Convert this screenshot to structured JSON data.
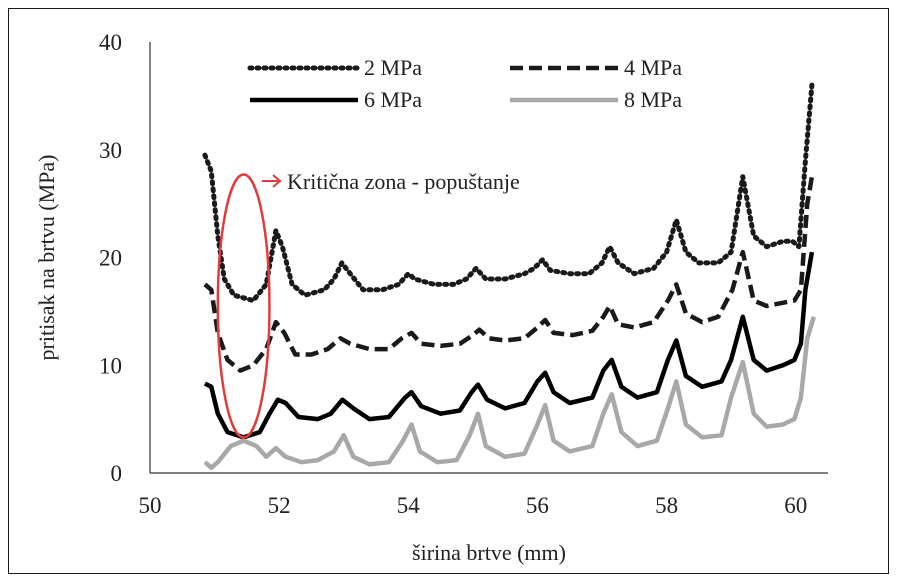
{
  "chart_data": {
    "type": "line",
    "xlabel": "širina brtve (mm)",
    "ylabel": "pritisak na brtvu (MPa)",
    "xlim": [
      50,
      60.5
    ],
    "ylim": [
      0,
      40
    ],
    "xticks": [
      50,
      52,
      54,
      56,
      58,
      60
    ],
    "yticks": [
      0,
      10,
      20,
      30,
      40
    ],
    "grid": false,
    "legend_position": "top",
    "series": [
      {
        "name": "2 MPa",
        "color": "#1a1a1a",
        "style": "dotted",
        "points": [
          [
            50.85,
            29.5
          ],
          [
            50.95,
            28
          ],
          [
            51.05,
            22
          ],
          [
            51.15,
            18
          ],
          [
            51.3,
            16.5
          ],
          [
            51.6,
            16
          ],
          [
            51.8,
            17.5
          ],
          [
            51.95,
            22.5
          ],
          [
            52.05,
            21
          ],
          [
            52.2,
            17.5
          ],
          [
            52.4,
            16.5
          ],
          [
            52.7,
            17
          ],
          [
            52.85,
            18
          ],
          [
            52.97,
            19.5
          ],
          [
            53.1,
            18.5
          ],
          [
            53.3,
            17
          ],
          [
            53.6,
            17
          ],
          [
            53.85,
            17.5
          ],
          [
            54.0,
            18.5
          ],
          [
            54.1,
            18
          ],
          [
            54.4,
            17.5
          ],
          [
            54.7,
            17.5
          ],
          [
            54.9,
            18
          ],
          [
            55.05,
            19
          ],
          [
            55.2,
            18
          ],
          [
            55.5,
            18
          ],
          [
            55.8,
            18.5
          ],
          [
            55.95,
            19
          ],
          [
            56.08,
            19.8
          ],
          [
            56.2,
            18.8
          ],
          [
            56.5,
            18.5
          ],
          [
            56.8,
            18.5
          ],
          [
            57.0,
            19.5
          ],
          [
            57.12,
            21
          ],
          [
            57.25,
            19.5
          ],
          [
            57.5,
            18.5
          ],
          [
            57.8,
            19
          ],
          [
            58.0,
            20.5
          ],
          [
            58.15,
            23.5
          ],
          [
            58.3,
            20.5
          ],
          [
            58.5,
            19.5
          ],
          [
            58.8,
            19.5
          ],
          [
            59.0,
            20.5
          ],
          [
            59.18,
            27.5
          ],
          [
            59.35,
            22
          ],
          [
            59.55,
            21
          ],
          [
            59.8,
            21.5
          ],
          [
            59.95,
            21.5
          ],
          [
            60.05,
            21
          ],
          [
            60.15,
            29
          ],
          [
            60.25,
            36
          ]
        ]
      },
      {
        "name": "4 MPa",
        "color": "#1a1a1a",
        "style": "dashed",
        "points": [
          [
            50.85,
            17.5
          ],
          [
            50.95,
            17
          ],
          [
            51.05,
            13
          ],
          [
            51.2,
            10.5
          ],
          [
            51.4,
            9.5
          ],
          [
            51.6,
            10
          ],
          [
            51.8,
            11.5
          ],
          [
            51.95,
            14
          ],
          [
            52.08,
            13
          ],
          [
            52.25,
            11
          ],
          [
            52.5,
            11
          ],
          [
            52.75,
            11.5
          ],
          [
            52.95,
            12.5
          ],
          [
            53.1,
            12
          ],
          [
            53.4,
            11.5
          ],
          [
            53.7,
            11.5
          ],
          [
            53.9,
            12.5
          ],
          [
            54.05,
            13
          ],
          [
            54.2,
            12
          ],
          [
            54.5,
            11.8
          ],
          [
            54.8,
            12
          ],
          [
            55.0,
            12.8
          ],
          [
            55.1,
            13.3
          ],
          [
            55.25,
            12.5
          ],
          [
            55.5,
            12.3
          ],
          [
            55.8,
            12.5
          ],
          [
            56.0,
            13.5
          ],
          [
            56.12,
            14.2
          ],
          [
            56.25,
            13
          ],
          [
            56.55,
            12.8
          ],
          [
            56.85,
            13.2
          ],
          [
            57.02,
            14.5
          ],
          [
            57.12,
            15.5
          ],
          [
            57.25,
            13.8
          ],
          [
            57.5,
            13.5
          ],
          [
            57.8,
            14
          ],
          [
            58.02,
            16
          ],
          [
            58.15,
            17.5
          ],
          [
            58.3,
            14.8
          ],
          [
            58.55,
            14
          ],
          [
            58.8,
            14.5
          ],
          [
            59.02,
            17
          ],
          [
            59.18,
            20.5
          ],
          [
            59.35,
            16
          ],
          [
            59.55,
            15.5
          ],
          [
            59.8,
            15.8
          ],
          [
            59.98,
            16
          ],
          [
            60.08,
            17
          ],
          [
            60.18,
            25
          ],
          [
            60.25,
            27.5
          ]
        ]
      },
      {
        "name": "6 MPa",
        "color": "#000000",
        "style": "solid",
        "points": [
          [
            50.85,
            8.3
          ],
          [
            50.95,
            8
          ],
          [
            51.05,
            5.5
          ],
          [
            51.2,
            3.8
          ],
          [
            51.45,
            3.3
          ],
          [
            51.7,
            3.8
          ],
          [
            51.85,
            5.5
          ],
          [
            51.98,
            6.8
          ],
          [
            52.1,
            6.5
          ],
          [
            52.3,
            5.2
          ],
          [
            52.6,
            5
          ],
          [
            52.8,
            5.5
          ],
          [
            52.98,
            6.8
          ],
          [
            53.15,
            6
          ],
          [
            53.4,
            5
          ],
          [
            53.7,
            5.2
          ],
          [
            53.95,
            7
          ],
          [
            54.05,
            7.5
          ],
          [
            54.2,
            6.2
          ],
          [
            54.5,
            5.5
          ],
          [
            54.8,
            5.8
          ],
          [
            54.98,
            7.5
          ],
          [
            55.08,
            8.2
          ],
          [
            55.22,
            6.8
          ],
          [
            55.5,
            6
          ],
          [
            55.8,
            6.5
          ],
          [
            56.0,
            8.5
          ],
          [
            56.12,
            9.3
          ],
          [
            56.25,
            7.5
          ],
          [
            56.5,
            6.5
          ],
          [
            56.85,
            7
          ],
          [
            57.02,
            9.5
          ],
          [
            57.15,
            10.5
          ],
          [
            57.3,
            8
          ],
          [
            57.55,
            7
          ],
          [
            57.85,
            7.5
          ],
          [
            58.02,
            10.5
          ],
          [
            58.15,
            12.3
          ],
          [
            58.3,
            9
          ],
          [
            58.55,
            8
          ],
          [
            58.85,
            8.5
          ],
          [
            59.0,
            10.5
          ],
          [
            59.18,
            14.5
          ],
          [
            59.35,
            10.5
          ],
          [
            59.55,
            9.5
          ],
          [
            59.8,
            10
          ],
          [
            59.98,
            10.5
          ],
          [
            60.08,
            12
          ],
          [
            60.15,
            17
          ],
          [
            60.25,
            20.5
          ]
        ]
      },
      {
        "name": "8 MPa",
        "color": "#a8a8a8",
        "style": "solid",
        "points": [
          [
            50.85,
            1
          ],
          [
            50.95,
            0.5
          ],
          [
            51.05,
            1
          ],
          [
            51.25,
            2.5
          ],
          [
            51.45,
            3
          ],
          [
            51.65,
            2.5
          ],
          [
            51.8,
            1.5
          ],
          [
            51.95,
            2.3
          ],
          [
            52.1,
            1.5
          ],
          [
            52.35,
            1
          ],
          [
            52.6,
            1.2
          ],
          [
            52.85,
            2
          ],
          [
            53.0,
            3.5
          ],
          [
            53.15,
            1.5
          ],
          [
            53.4,
            0.8
          ],
          [
            53.7,
            1
          ],
          [
            53.92,
            3
          ],
          [
            54.05,
            4.5
          ],
          [
            54.18,
            2
          ],
          [
            54.45,
            1
          ],
          [
            54.75,
            1.2
          ],
          [
            54.95,
            3.5
          ],
          [
            55.08,
            5.5
          ],
          [
            55.2,
            2.5
          ],
          [
            55.5,
            1.5
          ],
          [
            55.8,
            1.8
          ],
          [
            56.0,
            4.5
          ],
          [
            56.12,
            6.3
          ],
          [
            56.25,
            3
          ],
          [
            56.5,
            2
          ],
          [
            56.85,
            2.5
          ],
          [
            57.02,
            5.5
          ],
          [
            57.15,
            7.3
          ],
          [
            57.3,
            3.8
          ],
          [
            57.55,
            2.5
          ],
          [
            57.85,
            3
          ],
          [
            58.02,
            6
          ],
          [
            58.15,
            8.5
          ],
          [
            58.3,
            4.5
          ],
          [
            58.55,
            3.3
          ],
          [
            58.85,
            3.5
          ],
          [
            59.0,
            7
          ],
          [
            59.18,
            10.3
          ],
          [
            59.35,
            5.5
          ],
          [
            59.55,
            4.3
          ],
          [
            59.8,
            4.5
          ],
          [
            59.98,
            5
          ],
          [
            60.08,
            7
          ],
          [
            60.18,
            12.5
          ],
          [
            60.28,
            14.5
          ]
        ]
      }
    ],
    "annotation": {
      "text": "Kritična zona - popuštanje",
      "ellipse_center": [
        51.45,
        15.5
      ],
      "ellipse_radii": [
        0.4,
        12.2
      ],
      "color": "#e23b3b"
    }
  }
}
